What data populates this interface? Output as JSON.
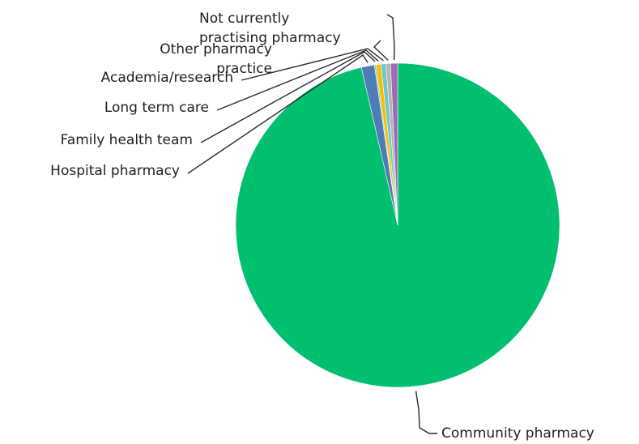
{
  "chart_data": {
    "type": "pie",
    "title": "",
    "slices": [
      {
        "label": "Community pharmacy",
        "value": 96.4,
        "color": "#00BF6F"
      },
      {
        "label": "Hospital pharmacy",
        "value": 1.3,
        "color": "#507CB6"
      },
      {
        "label": "Family health team",
        "value": 0.15,
        "color": "#6BC8CD"
      },
      {
        "label": "Long term care",
        "value": 0.5,
        "color": "#F9BE00"
      },
      {
        "label": "Academia/research",
        "value": 0.5,
        "color": "#6BC8CD"
      },
      {
        "label": "Other pharmacy practice",
        "value": 0.45,
        "color": "#B4B4B4"
      },
      {
        "label": "Not currently practising pharmacy",
        "value": 0.7,
        "color": "#9D6AB4"
      }
    ]
  }
}
